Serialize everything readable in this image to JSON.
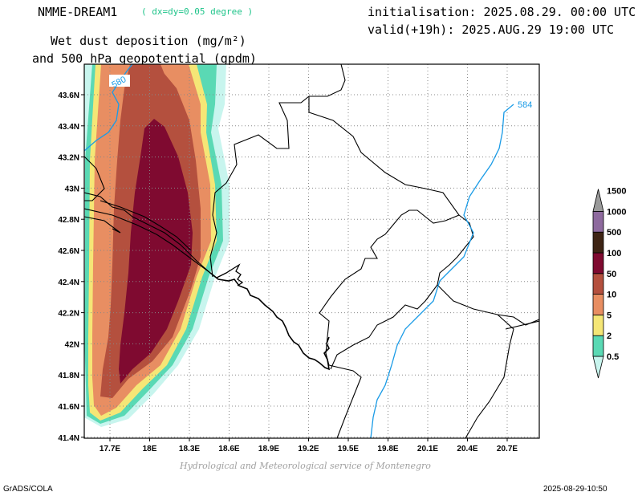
{
  "header": {
    "model": "NMME-DREAM1",
    "resolution": "( dx=dy=0.05 degree )",
    "init": "initialisation: 2025.08.29. 00:00 UTC",
    "valid": "valid(+19h): 2025.AUG.29 19:00 UTC",
    "title_line1": "Wet dust deposition (mg/m²)",
    "title_line2": "and 500 hPa geopotential (gpdm)"
  },
  "map": {
    "lat_ticks": [
      "43.6N",
      "43.4N",
      "43.2N",
      "43N",
      "42.8N",
      "42.6N",
      "42.4N",
      "42.2N",
      "42N",
      "41.8N",
      "41.6N",
      "41.4N"
    ],
    "lon_ticks": [
      "17.7E",
      "18E",
      "18.3E",
      "18.6E",
      "18.9E",
      "19.2E",
      "19.5E",
      "19.8E",
      "20.1E",
      "20.4E",
      "20.7E"
    ],
    "contours": [
      {
        "label": "580",
        "value": 580
      },
      {
        "label": "584",
        "value": 584
      }
    ]
  },
  "colorbar": {
    "levels": [
      "0.5",
      "2",
      "5",
      "10",
      "50",
      "100",
      "500",
      "1000",
      "1500"
    ],
    "colors": [
      "#c8f5ee",
      "#5ad9b4",
      "#f5e676",
      "#e88e62",
      "#b4503e",
      "#7f0a30",
      "#3e2414",
      "#8e6a9e",
      "#9a9a9a"
    ]
  },
  "footer": {
    "credit": "Hydrological and Meteorological service of Montenegro",
    "software": "GrADS/COLA",
    "timestamp": "2025-08-29-10:50"
  }
}
